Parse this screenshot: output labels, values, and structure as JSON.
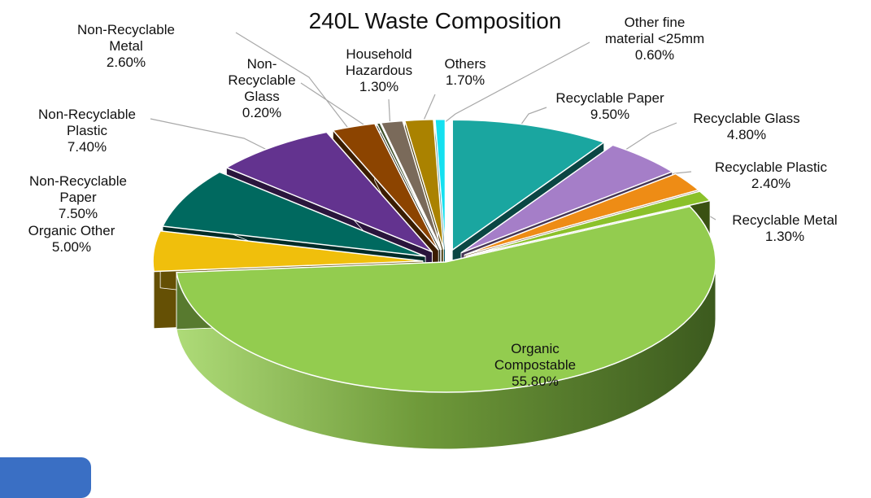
{
  "chart_data": {
    "type": "pie",
    "title": "240L Waste Composition",
    "slices": [
      {
        "name": "Recyclable Paper",
        "value": 9.5,
        "value_label": "9.50%",
        "color": "#1aa6a0",
        "exploded": true
      },
      {
        "name": "Recyclable Glass",
        "value": 4.8,
        "value_label": "4.80%",
        "color": "#a57ec8",
        "exploded": true
      },
      {
        "name": "Recyclable Plastic",
        "value": 2.4,
        "value_label": "2.40%",
        "color": "#ee8c15",
        "exploded": true
      },
      {
        "name": "Recyclable Metal",
        "value": 1.3,
        "value_label": "1.30%",
        "color": "#8bc12a",
        "exploded": true
      },
      {
        "name": "Organic Compostable",
        "value": 55.8,
        "value_label": "55.80%",
        "color": "#93cc4f",
        "exploded": false
      },
      {
        "name": "Organic Other",
        "value": 5.0,
        "value_label": "5.00%",
        "color": "#f0bf0c",
        "exploded": true
      },
      {
        "name": "Non-Recyclable Paper",
        "value": 7.5,
        "value_label": "7.50%",
        "color": "#00695f",
        "exploded": true
      },
      {
        "name": "Non-Recyclable Plastic",
        "value": 7.4,
        "value_label": "7.40%",
        "color": "#63338f",
        "exploded": true
      },
      {
        "name": "Non-Recyclable Metal",
        "value": 2.6,
        "value_label": "2.60%",
        "color": "#8c4400",
        "exploded": true
      },
      {
        "name": "Non-Recyclable Glass",
        "value": 0.2,
        "value_label": "0.20%",
        "color": "#3b4e27",
        "exploded": true
      },
      {
        "name": "Household Hazardous",
        "value": 1.3,
        "value_label": "1.30%",
        "color": "#7a6a5a",
        "exploded": true
      },
      {
        "name": "Others",
        "value": 1.7,
        "value_label": "1.70%",
        "color": "#aa8200",
        "exploded": true
      },
      {
        "name": "Other fine material <25mm",
        "value": 0.6,
        "value_label": "0.60%",
        "color": "#14e0f0",
        "exploded": true
      }
    ],
    "labels": [
      {
        "lines": [
          "Recyclable Paper",
          "9.50%"
        ]
      },
      {
        "lines": [
          "Recyclable Glass",
          "4.80%"
        ]
      },
      {
        "lines": [
          "Recyclable Plastic",
          "2.40%"
        ]
      },
      {
        "lines": [
          "Recyclable Metal",
          "1.30%"
        ]
      },
      {
        "lines": [
          "Organic",
          "Compostable",
          "55.80%"
        ]
      },
      {
        "lines": [
          "Organic Other",
          "5.00%"
        ]
      },
      {
        "lines": [
          "Non-Recyclable",
          "Paper",
          "7.50%"
        ]
      },
      {
        "lines": [
          "Non-Recyclable",
          "Plastic",
          "7.40%"
        ]
      },
      {
        "lines": [
          "Non-Recyclable",
          "Metal",
          "2.60%"
        ]
      },
      {
        "lines": [
          "Non-",
          "Recyclable",
          "Glass",
          "0.20%"
        ]
      },
      {
        "lines": [
          "Household",
          "Hazardous",
          "1.30%"
        ]
      },
      {
        "lines": [
          "Others",
          "1.70%"
        ]
      },
      {
        "lines": [
          "Other fine",
          "material <25mm",
          "0.60%"
        ]
      }
    ],
    "style": "3d-exploded",
    "legend": "none"
  }
}
